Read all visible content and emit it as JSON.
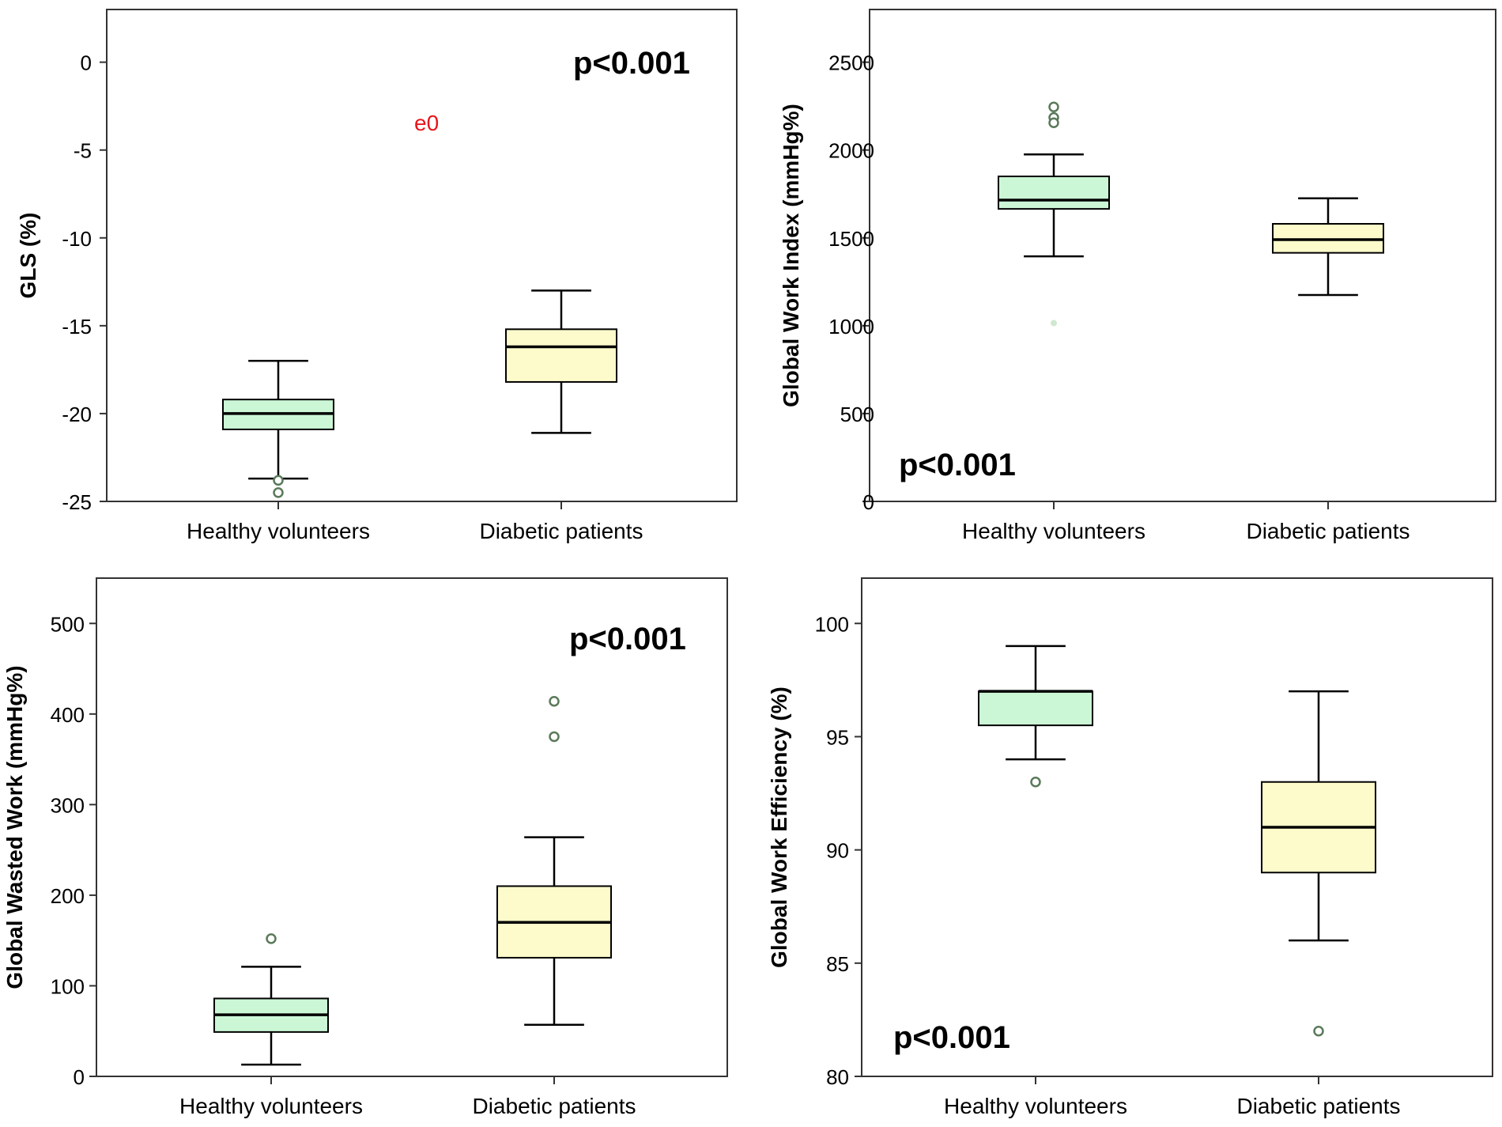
{
  "colors": {
    "healthy_box": "#ccf7d6",
    "diabetic_box": "#fdfbcc",
    "outlier": "#5a7a5a",
    "outlier_faint": "#cfe9cf",
    "stray_label": "#e8151b",
    "axis": "#333333",
    "text": "#000000"
  },
  "stray_label": "e0",
  "chart_data": [
    {
      "type": "box",
      "title": "",
      "xlabel": "",
      "ylabel": "GLS (%)",
      "ylim": [
        -25,
        3
      ],
      "yticks": [
        0,
        -5,
        -10,
        -15,
        -20,
        -25
      ],
      "categories": [
        "Healthy volunteers",
        "Diabetic patients"
      ],
      "p_value": "p<0.001",
      "p_position": "top-right",
      "series": [
        {
          "name": "Healthy volunteers",
          "min": -23.7,
          "q1": -20.9,
          "median": -20.0,
          "q3": -19.2,
          "max": -17.0,
          "outliers": [
            -23.8,
            -24.5
          ]
        },
        {
          "name": "Diabetic patients",
          "min": -21.1,
          "q1": -18.2,
          "median": -16.2,
          "q3": -15.2,
          "max": -13.0,
          "outliers": []
        }
      ]
    },
    {
      "type": "box",
      "title": "",
      "xlabel": "",
      "ylabel": "Global Work Index (mmHg%)",
      "ylim": [
        0,
        2800
      ],
      "yticks": [
        0,
        500,
        1000,
        1500,
        2000,
        2500
      ],
      "categories": [
        "Healthy volunteers",
        "Diabetic patients"
      ],
      "p_value": "p<0.001",
      "p_position": "bottom-left",
      "series": [
        {
          "name": "Healthy volunteers",
          "min": 1395,
          "q1": 1665,
          "median": 1715,
          "q3": 1850,
          "max": 1975,
          "outliers": [
            2245,
            2185,
            2155
          ],
          "faint_outliers": [
            1015
          ]
        },
        {
          "name": "Diabetic patients",
          "min": 1175,
          "q1": 1415,
          "median": 1490,
          "q3": 1580,
          "max": 1725,
          "outliers": []
        }
      ]
    },
    {
      "type": "box",
      "title": "",
      "xlabel": "",
      "ylabel": "Global Wasted Work (mmHg%)",
      "ylim": [
        0,
        550
      ],
      "yticks": [
        0,
        100,
        200,
        300,
        400,
        500
      ],
      "categories": [
        "Healthy volunteers",
        "Diabetic patients"
      ],
      "p_value": "p<0.001",
      "p_position": "top-right",
      "series": [
        {
          "name": "Healthy volunteers",
          "min": 13,
          "q1": 49,
          "median": 68,
          "q3": 86,
          "max": 121,
          "outliers": [
            152
          ]
        },
        {
          "name": "Diabetic patients",
          "min": 57,
          "q1": 131,
          "median": 170,
          "q3": 210,
          "max": 264,
          "outliers": [
            375,
            414
          ]
        }
      ]
    },
    {
      "type": "box",
      "title": "",
      "xlabel": "",
      "ylabel": "Global Work Efficiency (%)",
      "ylim": [
        80,
        102
      ],
      "yticks": [
        80,
        85,
        90,
        95,
        100
      ],
      "categories": [
        "Healthy volunteers",
        "Diabetic patients"
      ],
      "p_value": "p<0.001",
      "p_position": "bottom-left",
      "series": [
        {
          "name": "Healthy volunteers",
          "min": 94,
          "q1": 95.5,
          "median": 97,
          "q3": 97,
          "max": 99,
          "outliers": [
            93
          ]
        },
        {
          "name": "Diabetic patients",
          "min": 86,
          "q1": 89,
          "median": 91,
          "q3": 93,
          "max": 97,
          "outliers": [
            82
          ]
        }
      ]
    }
  ]
}
